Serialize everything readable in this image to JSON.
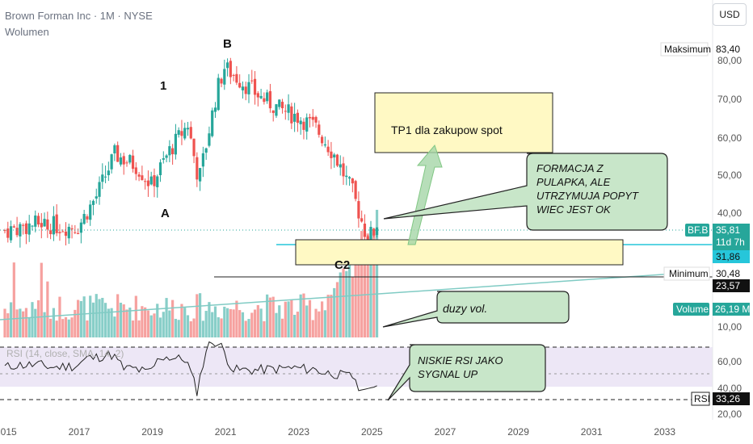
{
  "header": {
    "symbol": "Brown Forman Inc · 1M · NYSE",
    "volume_label": "Wolumen"
  },
  "currency_button": "USD",
  "price_axis": {
    "ticks": [
      "80,00",
      "70,00",
      "60,00",
      "50,00",
      "40,00",
      "20,00"
    ],
    "ticks_values": [
      80,
      70,
      60,
      50,
      40,
      20
    ]
  },
  "x_axis": {
    "years": [
      "2015",
      "2017",
      "2019",
      "2021",
      "2023",
      "2025",
      "2027",
      "2029",
      "2031",
      "2033"
    ]
  },
  "lower_ticks": [
    "10,00",
    "60,00",
    "40,00",
    "20,00"
  ],
  "price_labels": {
    "max_tag": "Maksimum",
    "max_value": "83,40",
    "ticker_tag": "BF.B",
    "last_price": "35,81",
    "countdown": "11d 7h",
    "level_1": "31,86",
    "min_tag": "Minimum",
    "min_value": "30,48",
    "level_2": "23,57",
    "volume_tag": "Volume",
    "volume_value": "26,19 M",
    "rsi_tag": "RSI",
    "rsi_value": "33,26"
  },
  "rsi_legend": "RSI (14, close, SMA, 14, 2)",
  "annotations": {
    "wave_1": "1",
    "wave_b": "B",
    "wave_a": "A",
    "wave_c2": "C2",
    "tp1": "TP1 dla zakupow spot",
    "formacja": [
      "FORMACJA Z",
      "PULAPKA, ALE",
      "UTRZYMUJA POPYT",
      "WIEC JEST OK"
    ],
    "duzy_vol": "duzy vol.",
    "rsi_note": [
      "NISKIE RSI JAKO",
      "SYGNAL UP"
    ]
  },
  "colors": {
    "bull": "#26a69a",
    "bear": "#ef5350",
    "rsi_line": "#222222",
    "rsi_band": "#ede7f6",
    "yellow_box": "#fff9c4",
    "green_callout": "#c8e6c9",
    "teal_line": "#26c6da"
  },
  "chart_data": {
    "type": "candlestick",
    "title": "Brown Forman Inc · 1M · NYSE",
    "interval": "1M",
    "price_range": [
      20,
      85
    ],
    "last_price": 35.81,
    "marked_levels": [
      83.4,
      35.81,
      31.86,
      30.48,
      23.57
    ],
    "monthly_close_path": [
      {
        "year": 2015.0,
        "close": 35
      },
      {
        "year": 2016.0,
        "close": 37
      },
      {
        "year": 2016.5,
        "close": 36
      },
      {
        "year": 2017.0,
        "close": 36
      },
      {
        "year": 2017.5,
        "close": 44
      },
      {
        "year": 2018.0,
        "close": 55
      },
      {
        "year": 2018.6,
        "close": 52
      },
      {
        "year": 2019.0,
        "close": 47
      },
      {
        "year": 2019.5,
        "close": 56
      },
      {
        "year": 2020.0,
        "close": 63
      },
      {
        "year": 2020.3,
        "close": 48
      },
      {
        "year": 2020.8,
        "close": 72
      },
      {
        "year": 2021.0,
        "close": 78
      },
      {
        "year": 2021.5,
        "close": 74
      },
      {
        "year": 2022.0,
        "close": 70
      },
      {
        "year": 2022.5,
        "close": 67
      },
      {
        "year": 2023.0,
        "close": 65
      },
      {
        "year": 2023.5,
        "close": 62
      },
      {
        "year": 2024.0,
        "close": 55
      },
      {
        "year": 2024.5,
        "close": 45
      },
      {
        "year": 2024.9,
        "close": 33
      },
      {
        "year": 2025.2,
        "close": 35.81
      }
    ],
    "rsi": {
      "range": [
        20,
        70
      ],
      "last": 33.26
    },
    "volume": {
      "last": "26,19 M"
    }
  }
}
